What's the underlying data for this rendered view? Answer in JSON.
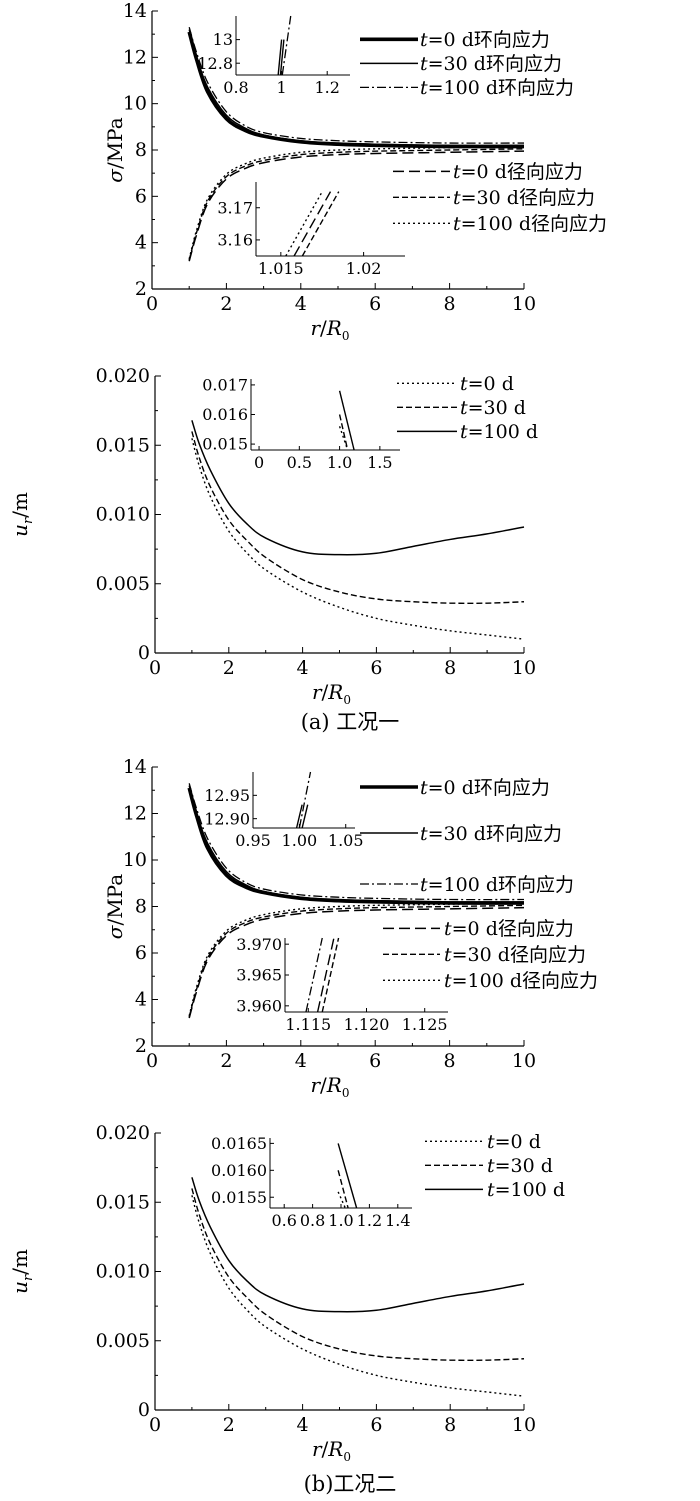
{
  "captions": {
    "a": "(a) 工况一",
    "b": "(b)工况二"
  },
  "axis_labels": {
    "stress_y": "σ/MPa",
    "disp_y": "u",
    "disp_y_sub": "r",
    "disp_y_unit": "/m",
    "x": "r/R",
    "x_sub": "0"
  },
  "line_styles": {
    "t=0 d环向应力": "thick-solid",
    "t=30 d环向应力": "solid",
    "t=100 d环向应力": "dash-dot",
    "t=0 d径向应力": "long-dash",
    "t=30 d径向应力": "dash",
    "t=100 d径向应力": "dot",
    "t=0 d": "dot",
    "t=30 d": "dash",
    "t=100 d": "solid"
  },
  "chart_data": [
    {
      "id": "a-stress",
      "type": "line",
      "xlim": [
        0,
        10
      ],
      "ylim": [
        2,
        14
      ],
      "xticks": [
        0,
        2,
        4,
        6,
        8,
        10
      ],
      "yticks": [
        2,
        4,
        6,
        8,
        10,
        12,
        14
      ],
      "xlabel": "r/R0",
      "ylabel": "σ/MPa",
      "x": [
        1.0,
        1.2,
        1.5,
        2.0,
        2.5,
        3.0,
        4.0,
        5.0,
        6.0,
        8.0,
        10.0
      ],
      "series": [
        {
          "name": "t=0 d环向应力",
          "values": [
            13.1,
            11.9,
            10.5,
            9.35,
            8.85,
            8.6,
            8.35,
            8.25,
            8.2,
            8.15,
            8.15
          ]
        },
        {
          "name": "t=30 d环向应力",
          "values": [
            13.2,
            12.0,
            10.7,
            9.5,
            8.95,
            8.65,
            8.4,
            8.3,
            8.25,
            8.2,
            8.2
          ]
        },
        {
          "name": "t=100 d环向应力",
          "values": [
            13.3,
            12.2,
            10.9,
            9.65,
            9.05,
            8.75,
            8.5,
            8.4,
            8.35,
            8.3,
            8.3
          ]
        },
        {
          "name": "t=0 d径向应力",
          "values": [
            3.2,
            4.35,
            5.7,
            6.75,
            7.2,
            7.45,
            7.7,
            7.8,
            7.85,
            7.9,
            7.95
          ]
        },
        {
          "name": "t=30 d径向应力",
          "values": [
            3.25,
            4.45,
            5.8,
            6.85,
            7.3,
            7.55,
            7.8,
            7.9,
            7.95,
            8.0,
            8.05
          ]
        },
        {
          "name": "t=100 d径向应力",
          "values": [
            3.3,
            4.55,
            5.9,
            6.95,
            7.4,
            7.65,
            7.9,
            8.0,
            8.05,
            8.1,
            8.15
          ]
        }
      ],
      "insets": [
        {
          "xlim": [
            0.8,
            1.3
          ],
          "ylim": [
            12.7,
            13.2
          ],
          "xticks": [
            0.8,
            1.0,
            1.2
          ],
          "yticks": [
            12.8,
            13.0
          ],
          "lines": [
            {
              "name": "t=0 d环向应力",
              "x": [
                0.985,
                1.0
              ],
              "y": [
                12.7,
                13.0
              ]
            },
            {
              "name": "t=30 d环向应力",
              "x": [
                0.995,
                1.01
              ],
              "y": [
                12.7,
                13.0
              ]
            },
            {
              "name": "t=100 d环向应力",
              "x": [
                1.003,
                1.04
              ],
              "y": [
                12.7,
                13.2
              ]
            }
          ]
        },
        {
          "xlim": [
            1.0135,
            1.0225
          ],
          "ylim": [
            3.155,
            3.178
          ],
          "xticks": [
            1.015,
            1.02
          ],
          "yticks": [
            3.16,
            3.17
          ],
          "lines": [
            {
              "name": "t=0 d径向应力",
              "x": [
                1.0158,
                1.018
              ],
              "y": [
                3.155,
                3.175
              ]
            },
            {
              "name": "t=30 d径向应力",
              "x": [
                1.0163,
                1.0185
              ],
              "y": [
                3.155,
                3.175
              ]
            },
            {
              "name": "t=100 d径向应力",
              "x": [
                1.0153,
                1.0175
              ],
              "y": [
                3.155,
                3.175
              ]
            }
          ]
        }
      ]
    },
    {
      "id": "a-disp",
      "type": "line",
      "xlim": [
        0,
        10
      ],
      "ylim": [
        0,
        0.02
      ],
      "xticks": [
        0,
        2,
        4,
        6,
        8,
        10
      ],
      "yticks": [
        0,
        0.005,
        0.01,
        0.015,
        0.02
      ],
      "xticklabels": [
        "0",
        "2",
        "4",
        "6",
        "8",
        "10"
      ],
      "yticklabels": [
        "0",
        "0.005",
        "0.010",
        "0.015",
        "0.020"
      ],
      "xlabel": "r/R0",
      "ylabel": "ur/m",
      "x": [
        1.0,
        1.2,
        1.5,
        2.0,
        2.5,
        3.0,
        4.0,
        5.0,
        6.0,
        7.0,
        8.0,
        9.0,
        10.0
      ],
      "series": [
        {
          "name": "t=0 d",
          "values": [
            0.0155,
            0.0135,
            0.0113,
            0.0088,
            0.0072,
            0.006,
            0.0044,
            0.0033,
            0.0025,
            0.002,
            0.0016,
            0.0013,
            0.001
          ]
        },
        {
          "name": "t=30 d",
          "values": [
            0.016,
            0.0141,
            0.012,
            0.0096,
            0.0081,
            0.0069,
            0.0053,
            0.0044,
            0.0039,
            0.0037,
            0.0036,
            0.0036,
            0.0037
          ]
        },
        {
          "name": "t=100 d",
          "values": [
            0.0168,
            0.0151,
            0.0132,
            0.0108,
            0.0093,
            0.0083,
            0.0073,
            0.0071,
            0.0072,
            0.0077,
            0.0082,
            0.0086,
            0.0091
          ]
        }
      ],
      "insets": [
        {
          "xlim": [
            -0.1,
            1.75
          ],
          "ylim": [
            0.0148,
            0.0172
          ],
          "xticks": [
            0,
            0.5,
            1.0,
            1.5
          ],
          "yticks": [
            0.015,
            0.016,
            0.017
          ],
          "xticklabels": [
            "0",
            "0.5",
            "1.0",
            "1.5"
          ],
          "yticklabels": [
            "0.015",
            "0.016",
            "0.017"
          ],
          "lines": [
            {
              "name": "t=0 d",
              "x": [
                1.0,
                1.1
              ],
              "y": [
                0.0156,
                0.0148
              ]
            },
            {
              "name": "t=30 d",
              "x": [
                1.0,
                1.1
              ],
              "y": [
                0.016,
                0.0148
              ]
            },
            {
              "name": "t=100 d",
              "x": [
                1.0,
                1.18
              ],
              "y": [
                0.0168,
                0.0148
              ]
            }
          ]
        }
      ]
    },
    {
      "id": "b-stress",
      "type": "line",
      "xlim": [
        0,
        10
      ],
      "ylim": [
        2,
        14
      ],
      "xticks": [
        0,
        2,
        4,
        6,
        8,
        10
      ],
      "yticks": [
        2,
        4,
        6,
        8,
        10,
        12,
        14
      ],
      "xlabel": "r/R0",
      "ylabel": "σ/MPa",
      "x": [
        1.0,
        1.2,
        1.5,
        2.0,
        2.5,
        3.0,
        4.0,
        5.0,
        6.0,
        8.0,
        10.0
      ],
      "series": [
        {
          "name": "t=0 d环向应力",
          "values": [
            13.1,
            11.9,
            10.5,
            9.35,
            8.85,
            8.6,
            8.35,
            8.25,
            8.2,
            8.15,
            8.15
          ]
        },
        {
          "name": "t=30 d环向应力",
          "values": [
            13.2,
            12.0,
            10.7,
            9.5,
            8.95,
            8.65,
            8.4,
            8.3,
            8.25,
            8.2,
            8.2
          ]
        },
        {
          "name": "t=100 d环向应力",
          "values": [
            13.3,
            12.2,
            10.9,
            9.65,
            9.05,
            8.75,
            8.5,
            8.4,
            8.35,
            8.3,
            8.3
          ]
        },
        {
          "name": "t=0 d径向应力",
          "values": [
            3.2,
            4.35,
            5.7,
            6.75,
            7.2,
            7.45,
            7.7,
            7.8,
            7.85,
            7.9,
            7.95
          ]
        },
        {
          "name": "t=30 d径向应力",
          "values": [
            3.25,
            4.45,
            5.8,
            6.85,
            7.3,
            7.55,
            7.8,
            7.9,
            7.95,
            8.0,
            8.05
          ]
        },
        {
          "name": "t=100 d径向应力",
          "values": [
            3.3,
            4.55,
            5.9,
            6.95,
            7.4,
            7.65,
            7.9,
            8.0,
            8.05,
            8.1,
            8.15
          ]
        }
      ],
      "insets": [
        {
          "xlim": [
            0.95,
            1.06
          ],
          "ylim": [
            12.88,
            13.0
          ],
          "xticks": [
            0.95,
            1.0,
            1.05
          ],
          "yticks": [
            12.9,
            12.95
          ],
          "xticklabels": [
            "0.95",
            "1.00",
            "1.05"
          ],
          "yticklabels": [
            "12.90",
            "12.95"
          ],
          "lines": [
            {
              "name": "t=0 d环向应力",
              "x": [
                0.997,
                1.003
              ],
              "y": [
                12.88,
                12.93
              ]
            },
            {
              "name": "t=30 d环向应力",
              "x": [
                1.003,
                1.009
              ],
              "y": [
                12.88,
                12.93
              ]
            },
            {
              "name": "t=100 d环向应力",
              "x": [
                1.0,
                1.012
              ],
              "y": [
                12.88,
                13.0
              ]
            }
          ]
        },
        {
          "xlim": [
            1.113,
            1.127
          ],
          "ylim": [
            3.959,
            3.971
          ],
          "xticks": [
            1.115,
            1.12,
            1.125
          ],
          "yticks": [
            3.96,
            3.965,
            3.97
          ],
          "xticklabels": [
            "1.115",
            "1.120",
            "1.125"
          ],
          "yticklabels": [
            "3.960",
            "3.965",
            "3.970"
          ],
          "lines": [
            {
              "name": "t=100 d环向应力",
              "x": [
                1.1148,
                1.1162
              ],
              "y": [
                3.959,
                3.971
              ]
            },
            {
              "name": "t=0 d径向应力",
              "x": [
                1.1158,
                1.1172
              ],
              "y": [
                3.959,
                3.971
              ]
            },
            {
              "name": "t=30 d径向应力",
              "x": [
                1.1162,
                1.1176
              ],
              "y": [
                3.959,
                3.971
              ]
            }
          ]
        }
      ]
    },
    {
      "id": "b-disp",
      "type": "line",
      "xlim": [
        0,
        10
      ],
      "ylim": [
        0,
        0.02
      ],
      "xticks": [
        0,
        2,
        4,
        6,
        8,
        10
      ],
      "yticks": [
        0,
        0.005,
        0.01,
        0.015,
        0.02
      ],
      "xticklabels": [
        "0",
        "2",
        "4",
        "6",
        "8",
        "10"
      ],
      "yticklabels": [
        "0",
        "0.005",
        "0.010",
        "0.015",
        "0.020"
      ],
      "xlabel": "r/R0",
      "ylabel": "ur/m",
      "x": [
        1.0,
        1.2,
        1.5,
        2.0,
        2.5,
        3.0,
        4.0,
        5.0,
        6.0,
        7.0,
        8.0,
        9.0,
        10.0
      ],
      "series": [
        {
          "name": "t=0 d",
          "values": [
            0.0155,
            0.0135,
            0.0113,
            0.0088,
            0.0072,
            0.006,
            0.0044,
            0.0033,
            0.0025,
            0.002,
            0.0016,
            0.0013,
            0.001
          ]
        },
        {
          "name": "t=30 d",
          "values": [
            0.016,
            0.0141,
            0.012,
            0.0096,
            0.0081,
            0.0069,
            0.0053,
            0.0044,
            0.0039,
            0.0037,
            0.0036,
            0.0036,
            0.0037
          ]
        },
        {
          "name": "t=100 d",
          "values": [
            0.0168,
            0.0151,
            0.0132,
            0.0108,
            0.0093,
            0.0083,
            0.0073,
            0.0071,
            0.0072,
            0.0077,
            0.0082,
            0.0086,
            0.0091
          ]
        }
      ],
      "insets": [
        {
          "xlim": [
            0.5,
            1.5
          ],
          "ylim": [
            0.0153,
            0.0166
          ],
          "xticks": [
            0.6,
            0.8,
            1.0,
            1.2,
            1.4
          ],
          "yticks": [
            0.0155,
            0.016,
            0.0165
          ],
          "xticklabels": [
            "0.6",
            "0.8",
            "1.0",
            "1.2",
            "1.4"
          ],
          "yticklabels": [
            "0.0155",
            "0.0160",
            "0.0165"
          ],
          "lines": [
            {
              "name": "t=0 d",
              "x": [
                0.98,
                1.03
              ],
              "y": [
                0.0156,
                0.0153
              ]
            },
            {
              "name": "t=30 d",
              "x": [
                0.98,
                1.05
              ],
              "y": [
                0.016,
                0.0153
              ]
            },
            {
              "name": "t=100 d",
              "x": [
                0.98,
                1.11
              ],
              "y": [
                0.0165,
                0.0153
              ]
            }
          ]
        }
      ]
    }
  ]
}
